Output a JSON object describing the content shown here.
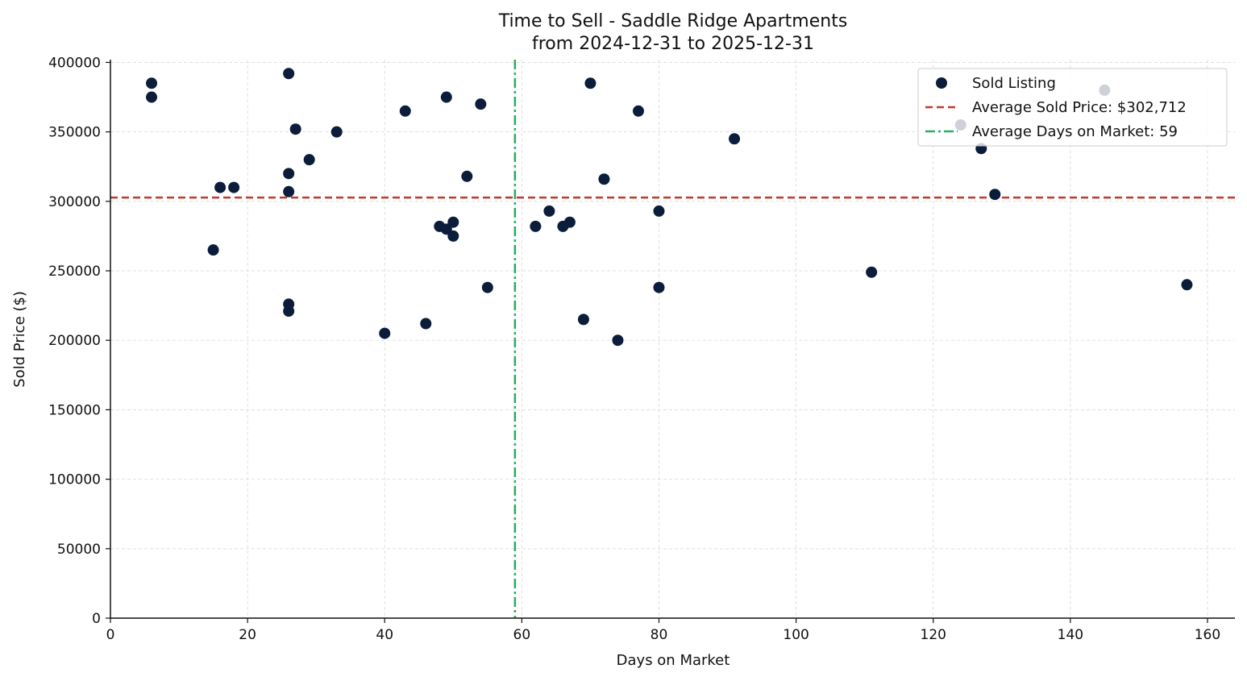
{
  "chart_data": {
    "type": "scatter",
    "title_line1": "Time to Sell - Saddle Ridge Apartments",
    "title_line2": "from 2024-12-31 to 2025-12-31",
    "xlabel": "Days on Market",
    "ylabel": "Sold Price ($)",
    "xlim": [
      0,
      164
    ],
    "ylim": [
      0,
      402000
    ],
    "x_ticks": [
      0,
      20,
      40,
      60,
      80,
      100,
      120,
      140,
      160
    ],
    "y_ticks": [
      0,
      50000,
      100000,
      150000,
      200000,
      250000,
      300000,
      350000,
      400000
    ],
    "grid": true,
    "legend_position": "top-right",
    "series": [
      {
        "name": "Sold Listing",
        "color": "#0b1d3a",
        "points": [
          {
            "x": 6,
            "y": 385000
          },
          {
            "x": 6,
            "y": 375000
          },
          {
            "x": 15,
            "y": 265000
          },
          {
            "x": 16,
            "y": 310000
          },
          {
            "x": 18,
            "y": 310000
          },
          {
            "x": 26,
            "y": 392000
          },
          {
            "x": 26,
            "y": 320000
          },
          {
            "x": 26,
            "y": 307000
          },
          {
            "x": 26,
            "y": 226000
          },
          {
            "x": 26,
            "y": 221000
          },
          {
            "x": 27,
            "y": 352000
          },
          {
            "x": 29,
            "y": 330000
          },
          {
            "x": 33,
            "y": 350000
          },
          {
            "x": 40,
            "y": 205000
          },
          {
            "x": 43,
            "y": 365000
          },
          {
            "x": 46,
            "y": 212000
          },
          {
            "x": 48,
            "y": 282000
          },
          {
            "x": 49,
            "y": 375000
          },
          {
            "x": 49,
            "y": 280000
          },
          {
            "x": 50,
            "y": 285000
          },
          {
            "x": 50,
            "y": 275000
          },
          {
            "x": 52,
            "y": 318000
          },
          {
            "x": 54,
            "y": 370000
          },
          {
            "x": 55,
            "y": 238000
          },
          {
            "x": 62,
            "y": 282000
          },
          {
            "x": 64,
            "y": 293000
          },
          {
            "x": 66,
            "y": 282000
          },
          {
            "x": 67,
            "y": 285000
          },
          {
            "x": 69,
            "y": 215000
          },
          {
            "x": 70,
            "y": 385000
          },
          {
            "x": 72,
            "y": 316000
          },
          {
            "x": 74,
            "y": 200000
          },
          {
            "x": 77,
            "y": 365000
          },
          {
            "x": 80,
            "y": 293000
          },
          {
            "x": 80,
            "y": 238000
          },
          {
            "x": 91,
            "y": 345000
          },
          {
            "x": 111,
            "y": 249000
          },
          {
            "x": 124,
            "y": 355000
          },
          {
            "x": 127,
            "y": 338000
          },
          {
            "x": 129,
            "y": 305000
          },
          {
            "x": 145,
            "y": 380000
          },
          {
            "x": 157,
            "y": 240000
          }
        ]
      }
    ],
    "reference_lines": [
      {
        "name": "Average Sold Price: $302,712",
        "orientation": "horizontal",
        "value": 302712,
        "color": "#c0392b",
        "style": "dashed"
      },
      {
        "name": "Average Days on Market: 59",
        "orientation": "vertical",
        "value": 59,
        "color": "#27ae60",
        "style": "dash-dot"
      }
    ]
  }
}
